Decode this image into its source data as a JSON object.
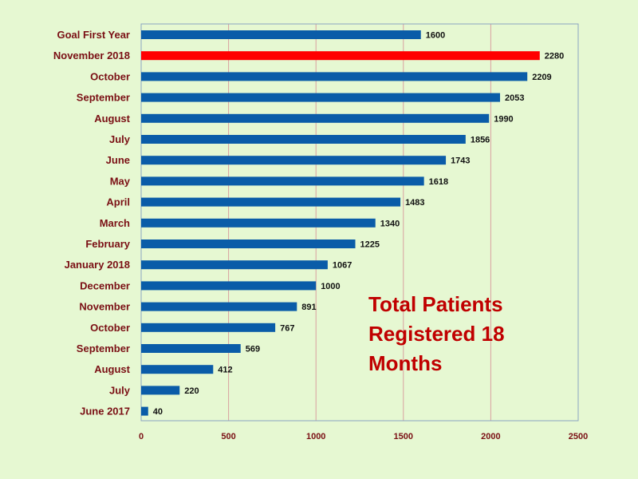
{
  "chart_data": {
    "type": "bar",
    "orientation": "horizontal",
    "categories": [
      "Goal First Year",
      "November 2018",
      "October",
      "September",
      "August",
      "July",
      "June",
      "May",
      "April",
      "March",
      "February",
      "January 2018",
      "December",
      "November",
      "October",
      "September",
      "August",
      "July",
      "June 2017"
    ],
    "values": [
      1600,
      2280,
      2209,
      2053,
      1990,
      1856,
      1743,
      1618,
      1483,
      1340,
      1225,
      1067,
      1000,
      891,
      767,
      569,
      412,
      220,
      40
    ],
    "value_labels": [
      "1600",
      "2280",
      "2209",
      "2053",
      "1990",
      "1856",
      "1743",
      "1618",
      "1483",
      "1340",
      "1225",
      "1067",
      "1000",
      "891",
      "767",
      "569",
      "412",
      "220",
      "40"
    ],
    "highlight_index": 1,
    "xlim": [
      0,
      2500
    ],
    "x_ticks": [
      0,
      500,
      1000,
      1500,
      2000,
      2500
    ],
    "grid": "vertical",
    "title": "",
    "xlabel": "",
    "ylabel": "",
    "annotation": "Total Patients Registered 18 Months",
    "colors": {
      "bar": "#0a5ca8",
      "highlight_bar": "#ff0000",
      "highlight_label": "#d00000",
      "category_label": "#7a0f14",
      "tick_label": "#7a0f14",
      "value_label": "#111111",
      "grid": "#d9a0a0",
      "annotation": "#c00000",
      "plot_background": "#e6f8d2",
      "plot_border": "#8aa3c2"
    }
  }
}
